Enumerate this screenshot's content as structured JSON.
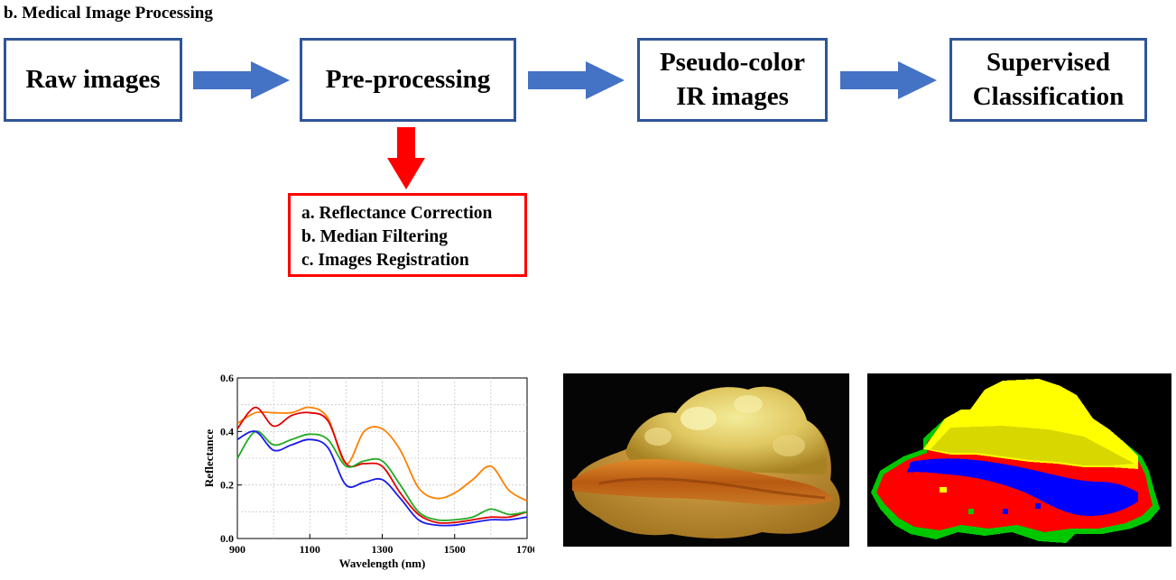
{
  "section_title": "b. Medical Image Processing",
  "pipeline": {
    "stages": [
      {
        "lines": [
          "Raw images"
        ]
      },
      {
        "lines": [
          "Pre-processing"
        ]
      },
      {
        "lines": [
          "Pseudo-color",
          "IR images"
        ]
      },
      {
        "lines": [
          "Supervised",
          "Classification"
        ]
      }
    ],
    "flow_arrow_color": "#4472c4",
    "stage_border_color": "#2f5597"
  },
  "preprocessing_steps": {
    "border_color": "#ff0000",
    "arrow_color": "#ff0000",
    "items": [
      "a. Reflectance Correction",
      "b. Median Filtering",
      "c. Images Registration"
    ]
  },
  "chart_data": {
    "type": "line",
    "xlabel": "Wavelength (nm)",
    "ylabel": "Reflectance",
    "xlim": [
      900,
      1700
    ],
    "ylim": [
      0,
      0.6
    ],
    "xticks": [
      900,
      1100,
      1300,
      1500,
      1700
    ],
    "yticks": [
      0.0,
      0.2,
      0.4,
      0.6
    ],
    "ytick_labels": [
      "0.0",
      "0.2",
      "0.4",
      "0.6"
    ],
    "grid": true,
    "series": [
      {
        "color": "#ff8000",
        "x": [
          900,
          950,
          1000,
          1050,
          1100,
          1150,
          1200,
          1250,
          1300,
          1350,
          1400,
          1450,
          1500,
          1550,
          1600,
          1650,
          1700
        ],
        "y": [
          0.43,
          0.47,
          0.47,
          0.47,
          0.49,
          0.45,
          0.28,
          0.4,
          0.41,
          0.33,
          0.19,
          0.15,
          0.17,
          0.22,
          0.27,
          0.18,
          0.14
        ]
      },
      {
        "color": "#e00000",
        "x": [
          900,
          950,
          1000,
          1050,
          1100,
          1150,
          1200,
          1250,
          1300,
          1350,
          1400,
          1450,
          1500,
          1550,
          1600,
          1650,
          1700
        ],
        "y": [
          0.41,
          0.49,
          0.42,
          0.46,
          0.47,
          0.44,
          0.28,
          0.28,
          0.27,
          0.17,
          0.09,
          0.06,
          0.06,
          0.07,
          0.08,
          0.08,
          0.1
        ]
      },
      {
        "color": "#22aa22",
        "x": [
          900,
          950,
          1000,
          1050,
          1100,
          1150,
          1200,
          1250,
          1300,
          1350,
          1400,
          1450,
          1500,
          1550,
          1600,
          1650,
          1700
        ],
        "y": [
          0.3,
          0.4,
          0.35,
          0.37,
          0.39,
          0.37,
          0.27,
          0.29,
          0.29,
          0.2,
          0.1,
          0.07,
          0.07,
          0.08,
          0.11,
          0.09,
          0.1
        ]
      },
      {
        "color": "#1a1aee",
        "x": [
          900,
          950,
          1000,
          1050,
          1100,
          1150,
          1200,
          1250,
          1300,
          1350,
          1400,
          1450,
          1500,
          1550,
          1600,
          1650,
          1700
        ],
        "y": [
          0.37,
          0.4,
          0.33,
          0.35,
          0.37,
          0.34,
          0.2,
          0.21,
          0.22,
          0.15,
          0.07,
          0.05,
          0.05,
          0.06,
          0.07,
          0.07,
          0.08
        ]
      }
    ]
  },
  "images": {
    "tissue_photo": {
      "background": "#000000"
    },
    "classification_map": {
      "background": "#000000",
      "class_colors": [
        "#ffff00",
        "#d8d800",
        "#0000ff",
        "#ff0000",
        "#00c800"
      ]
    }
  }
}
